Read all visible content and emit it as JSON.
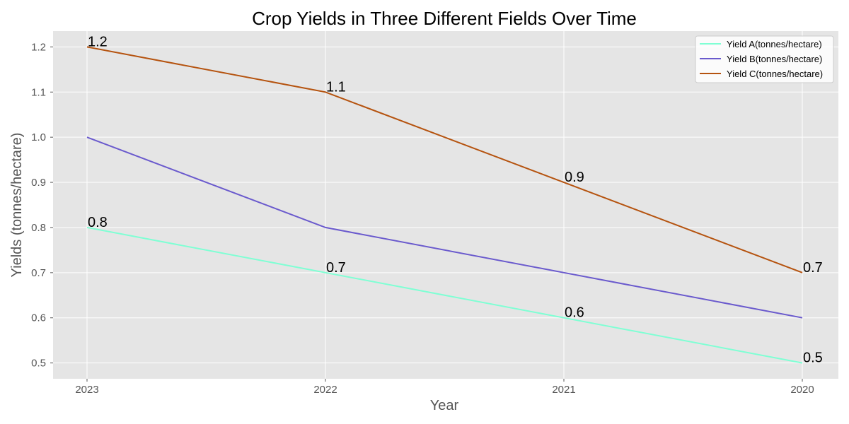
{
  "chart_data": {
    "type": "line",
    "title": "Crop Yields in Three Different Fields Over Time",
    "xlabel": "Year",
    "ylabel": "Yields (tonnes/hectare)",
    "categories": [
      "2023",
      "2022",
      "2021",
      "2020"
    ],
    "ylim": [
      0.465,
      1.235
    ],
    "yticks": [
      "0.5",
      "0.6",
      "0.7",
      "0.8",
      "0.9",
      "1.0",
      "1.1",
      "1.2"
    ],
    "grid": true,
    "legend_position": "top-right",
    "series": [
      {
        "name": "Yield A(tonnes/hectare)",
        "values": [
          0.8,
          0.7,
          0.6,
          0.5
        ],
        "color": "#7fffd4",
        "data_labels": [
          "0.8",
          "0.7",
          "0.6",
          "0.5"
        ]
      },
      {
        "name": "Yield B(tonnes/hectare)",
        "values": [
          1.0,
          0.8,
          0.7,
          0.6
        ],
        "color": "#6a5acd"
      },
      {
        "name": "Yield C(tonnes/hectare)",
        "values": [
          1.2,
          1.1,
          0.9,
          0.7
        ],
        "color": "#b5530f",
        "data_labels": [
          "1.2",
          "1.1",
          "0.9",
          "0.7"
        ]
      }
    ],
    "colors": {
      "plot_background": "#e5e5e5",
      "grid": "#ffffff"
    }
  }
}
